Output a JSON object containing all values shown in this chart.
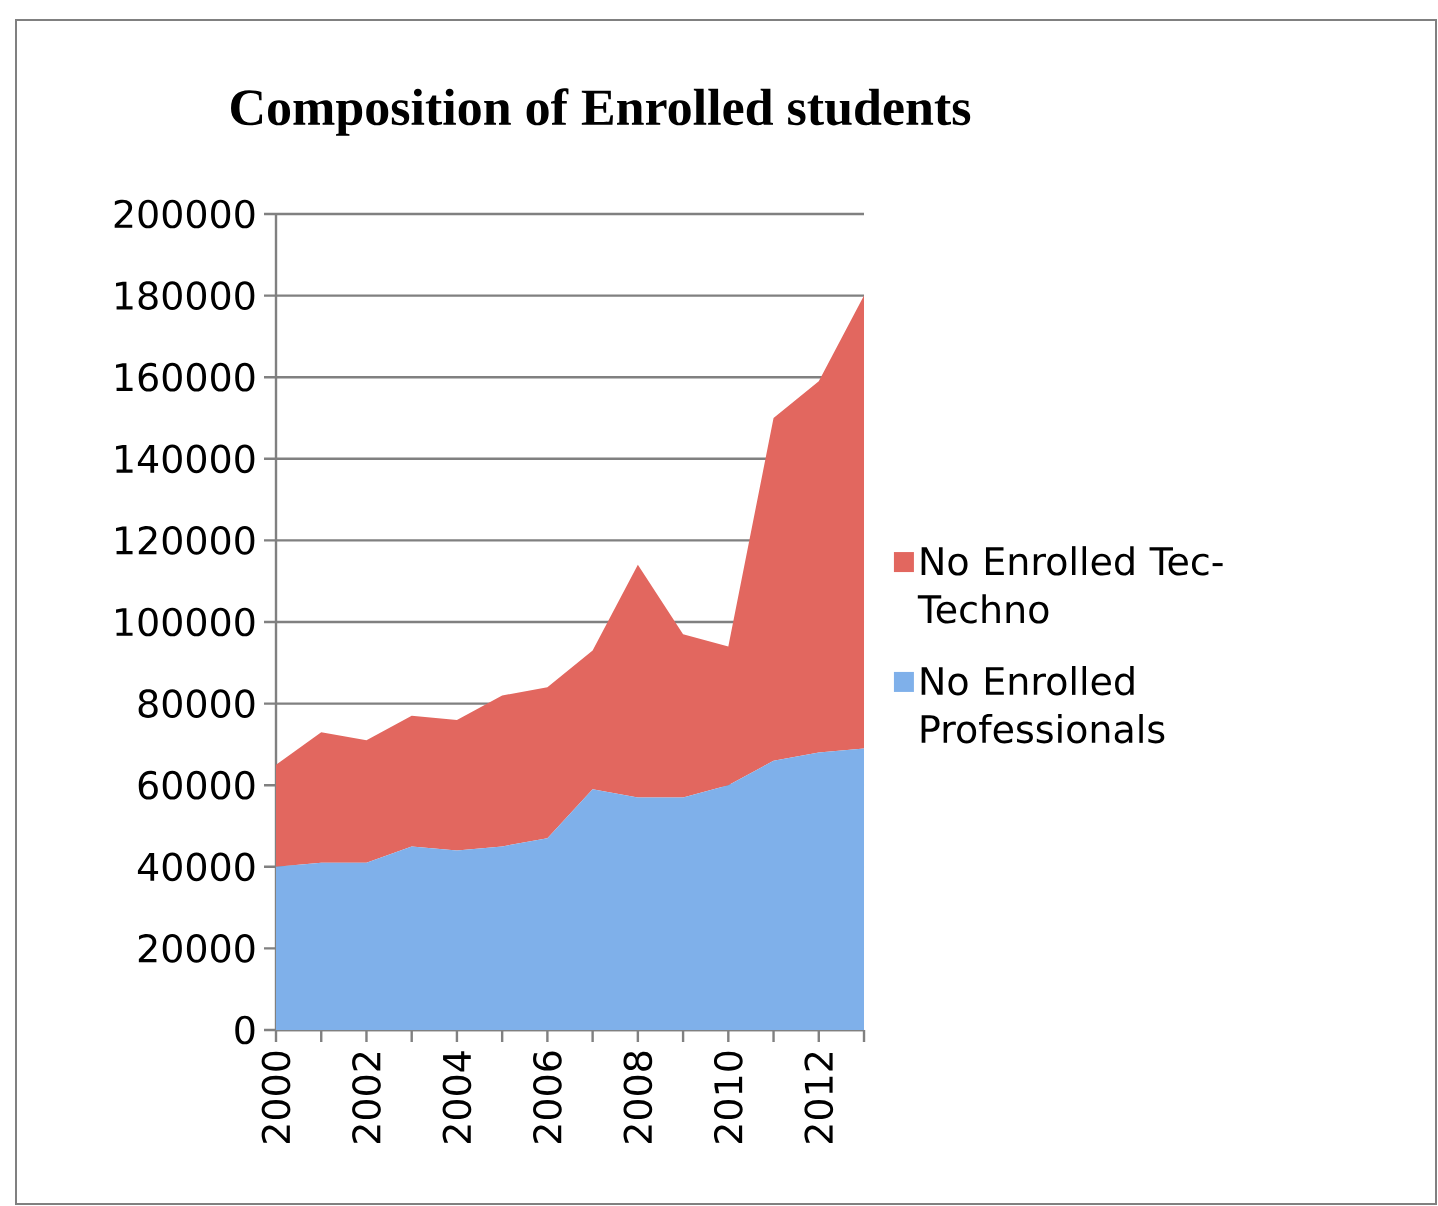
{
  "chart_data": {
    "type": "area",
    "title": "Composition of Enrolled students",
    "stacked": true,
    "grid": "y",
    "legend": "right",
    "categories": [
      "2000",
      null,
      "2002",
      null,
      "2004",
      null,
      "2006",
      null,
      "2008",
      null,
      "2010",
      null,
      "2012",
      null
    ],
    "ylim": [
      0,
      200000
    ],
    "yticks": [
      0,
      20000,
      40000,
      60000,
      80000,
      100000,
      120000,
      140000,
      160000,
      180000,
      200000
    ],
    "series": [
      {
        "name": "No Enrolled Professionals",
        "color": "#7fb0ea",
        "values": [
          40000,
          41000,
          41000,
          45000,
          44000,
          45000,
          47000,
          59000,
          57000,
          57000,
          60000,
          66000,
          68000,
          69000
        ]
      },
      {
        "name": "No Enrolled Tec-Techno",
        "color": "#e2675f",
        "values": [
          25000,
          32000,
          30000,
          32000,
          32000,
          37000,
          37000,
          34000,
          57000,
          40000,
          34000,
          84000,
          91000,
          111000
        ]
      }
    ]
  }
}
